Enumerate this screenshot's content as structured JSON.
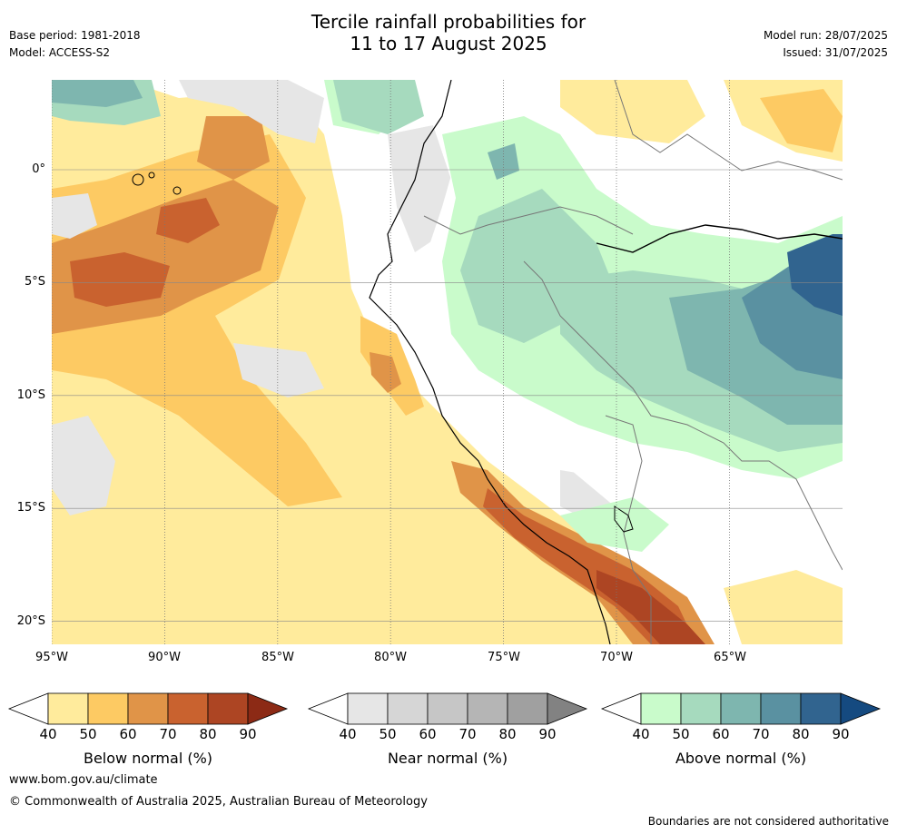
{
  "title": {
    "line1": "Tercile rainfall probabilities for",
    "line2": "11 to 17 August 2025"
  },
  "meta_left": {
    "base_period": "Base period: 1981-2018",
    "model": "Model: ACCESS-S2"
  },
  "meta_right": {
    "model_run": "Model run: 28/07/2025",
    "issued": "Issued: 31/07/2025"
  },
  "map": {
    "lat_labels": [
      "0°",
      "5°S",
      "10°S",
      "15°S",
      "20°S"
    ],
    "lon_labels": [
      "95°W",
      "90°W",
      "85°W",
      "80°W",
      "75°W",
      "70°W",
      "65°W"
    ]
  },
  "legends": [
    {
      "label": "Below normal (%)",
      "ticks": [
        "40",
        "50",
        "60",
        "70",
        "80",
        "90"
      ],
      "colors": [
        "#ffeb9c",
        "#fdca63",
        "#e09448",
        "#c9622f",
        "#ad4523",
        "#8c2a15"
      ]
    },
    {
      "label": "Near normal (%)",
      "ticks": [
        "40",
        "50",
        "60",
        "70",
        "80",
        "90"
      ],
      "colors": [
        "#e6e6e6",
        "#d6d6d6",
        "#c6c6c6",
        "#b5b5b5",
        "#a0a0a0",
        "#828282"
      ]
    },
    {
      "label": "Above normal (%)",
      "ticks": [
        "40",
        "50",
        "60",
        "70",
        "80",
        "90"
      ],
      "colors": [
        "#c9fbcb",
        "#a6dabe",
        "#7eb6af",
        "#5a91a1",
        "#31648f",
        "#154a80"
      ]
    }
  ],
  "footer": {
    "url": "www.bom.gov.au/climate",
    "copyright": "© Commonwealth of Australia 2025, Australian Bureau of Meteorology",
    "disclaimer": "Boundaries are not considered authoritative"
  }
}
